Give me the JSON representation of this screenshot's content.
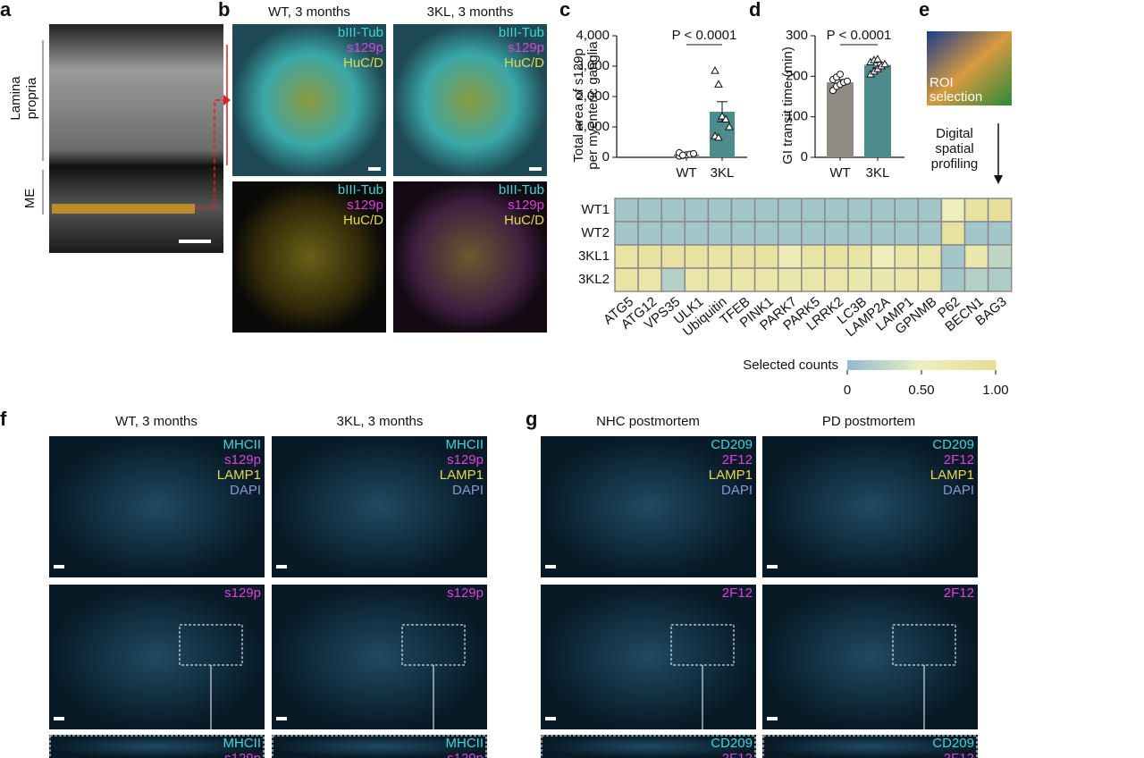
{
  "panel_labels": [
    "a",
    "b",
    "c",
    "d",
    "e",
    "f",
    "g"
  ],
  "panel_a": {
    "regions": [
      [
        "Lamina",
        "propria"
      ],
      [
        "ME"
      ]
    ]
  },
  "panel_b": {
    "columns": [
      "WT, 3 months",
      "3KL, 3 months"
    ],
    "stains": [
      {
        "text": "bIII-Tub",
        "color": "#3fd6d8"
      },
      {
        "text": "s129p",
        "color": "#e040e0"
      },
      {
        "text": "HuC/D",
        "color": "#e8d84a"
      }
    ]
  },
  "panel_e": {
    "image_label": [
      "ROI",
      "selection"
    ],
    "step": [
      "Digital",
      "spatial",
      "profiling"
    ]
  },
  "panel_f": {
    "columns": [
      "WT, 3 months",
      "3KL, 3 months"
    ],
    "stains": [
      {
        "text": "MHCII",
        "color": "#3fd6d8"
      },
      {
        "text": "s129p",
        "color": "#e040e0"
      },
      {
        "text": "LAMP1",
        "color": "#e8d84a"
      },
      {
        "text": "DAPI",
        "color": "#8896d8"
      }
    ]
  },
  "panel_g": {
    "columns": [
      "NHC postmortem",
      "PD postmortem"
    ],
    "stains": [
      {
        "text": "CD209",
        "color": "#3fd6d8"
      },
      {
        "text": "2F12",
        "color": "#e040e0"
      },
      {
        "text": "LAMP1",
        "color": "#e8d84a"
      },
      {
        "text": "DAPI",
        "color": "#8896d8"
      }
    ]
  },
  "chart_data": [
    {
      "type": "bar",
      "ylabel": [
        "Total area of s129p",
        "per myenteric ganglia"
      ],
      "annotation": "P < 0.0001",
      "categories": [
        "WT",
        "3KL"
      ],
      "values": [
        100,
        1500
      ],
      "errors": [
        40,
        330
      ],
      "points": [
        [
          40,
          60,
          80,
          100,
          120,
          150,
          70
        ],
        [
          2850,
          2400,
          1350,
          1250,
          1000,
          700,
          650
        ]
      ],
      "markers": [
        "circle",
        "triangle"
      ],
      "colors": [
        "#8f8a82",
        "#4e8c8c"
      ],
      "ylim": [
        0,
        4000
      ],
      "yticks": [
        0,
        {
          "value": 1000,
          "label": "1,000"
        },
        {
          "value": 2000,
          "label": "2,000"
        },
        {
          "value": 3000,
          "label": "3,000"
        },
        {
          "value": 4000,
          "label": "4,000"
        }
      ]
    },
    {
      "type": "bar",
      "ylabel": [
        "GI transit time (min)"
      ],
      "annotation": "P < 0.0001",
      "categories": [
        "WT",
        "3KL"
      ],
      "values": [
        185,
        228
      ],
      "errors": [
        7,
        7
      ],
      "points": [
        [
          165,
          175,
          180,
          185,
          188,
          192,
          198,
          205
        ],
        [
          205,
          212,
          218,
          225,
          230,
          235,
          240,
          242
        ]
      ],
      "markers": [
        "circle",
        "triangle"
      ],
      "colors": [
        "#8f8a82",
        "#4e8c8c"
      ],
      "ylim": [
        0,
        300
      ],
      "yticks": [
        0,
        100,
        200,
        300
      ]
    },
    {
      "type": "heatmap",
      "rows": [
        "WT1",
        "WT2",
        "3KL1",
        "3KL2"
      ],
      "columns": [
        "ATG5",
        "ATG12",
        "VPS35",
        "ULK1",
        "Ubiquitin",
        "TFEB",
        "PINK1",
        "PARK7",
        "PARK5",
        "LRRK2",
        "LC3B",
        "LAMP2A",
        "LAMP1",
        "GPNMB",
        "P62",
        "BECN1",
        "BAG3"
      ],
      "values": [
        [
          0.1,
          0.1,
          0.1,
          0.1,
          0.1,
          0.1,
          0.1,
          0.1,
          0.1,
          0.1,
          0.1,
          0.1,
          0.1,
          0.1,
          0.55,
          0.85,
          0.9
        ],
        [
          0.1,
          0.1,
          0.1,
          0.1,
          0.1,
          0.1,
          0.1,
          0.1,
          0.1,
          0.1,
          0.1,
          0.1,
          0.1,
          0.1,
          0.85,
          0.1,
          0.1
        ],
        [
          0.8,
          0.85,
          0.85,
          0.85,
          0.8,
          0.85,
          0.85,
          0.6,
          0.8,
          0.85,
          0.8,
          0.55,
          0.75,
          0.75,
          0.1,
          0.7,
          0.25
        ],
        [
          0.8,
          0.75,
          0.2,
          0.75,
          0.75,
          0.75,
          0.75,
          0.7,
          0.75,
          0.75,
          0.7,
          0.7,
          0.75,
          0.75,
          0.1,
          0.2,
          0.15
        ]
      ],
      "colorbar_label": "Selected counts",
      "zlim": [
        0,
        1
      ],
      "zticks": [
        0,
        {
          "value": 0.5,
          "label": "0.50"
        },
        {
          "value": 1,
          "label": "1.00"
        }
      ],
      "colormap": [
        "#8fbccc",
        "#eef0c0",
        "#e6db92"
      ]
    }
  ]
}
